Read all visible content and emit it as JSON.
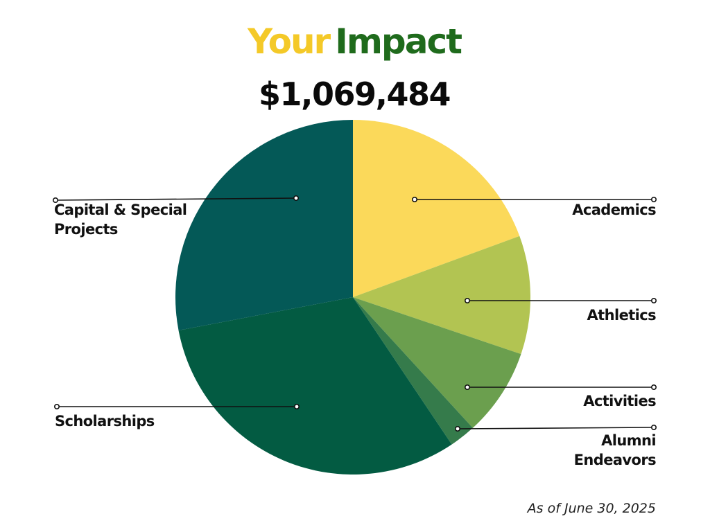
{
  "header": {
    "title_word_1": "Your",
    "title_word_2": "Impact",
    "total": "$1,069,484"
  },
  "colors": {
    "title_word_1": "#f4c928",
    "title_word_2": "#1f6b1c"
  },
  "footnote": "As of June 30, 2025",
  "chart_data": {
    "type": "pie",
    "title": "Your Impact",
    "total_label": "$1,069,484",
    "start": "12 o'clock, clockwise",
    "legend": "none (leader-line labels)",
    "slices": [
      {
        "name": "Academics",
        "label_lines": [
          "Academics"
        ],
        "percent": 19.4,
        "color": "#fbd95a",
        "side": "right"
      },
      {
        "name": "Athletics",
        "label_lines": [
          "Athletics"
        ],
        "percent": 10.8,
        "color": "#b2c452",
        "side": "right"
      },
      {
        "name": "Activities",
        "label_lines": [
          "Activities"
        ],
        "percent": 8.0,
        "color": "#6b9f4e",
        "side": "right"
      },
      {
        "name": "Alumni Endeavors",
        "label_lines": [
          "Alumni",
          "Endeavors"
        ],
        "percent": 2.4,
        "color": "#357b4b",
        "side": "right"
      },
      {
        "name": "Scholarships",
        "label_lines": [
          "Scholarships"
        ],
        "percent": 31.4,
        "color": "#035b42",
        "side": "left"
      },
      {
        "name": "Capital & Special Projects",
        "label_lines": [
          "Capital & Special",
          "Projects"
        ],
        "percent": 28.0,
        "color": "#045957",
        "side": "left"
      }
    ]
  }
}
